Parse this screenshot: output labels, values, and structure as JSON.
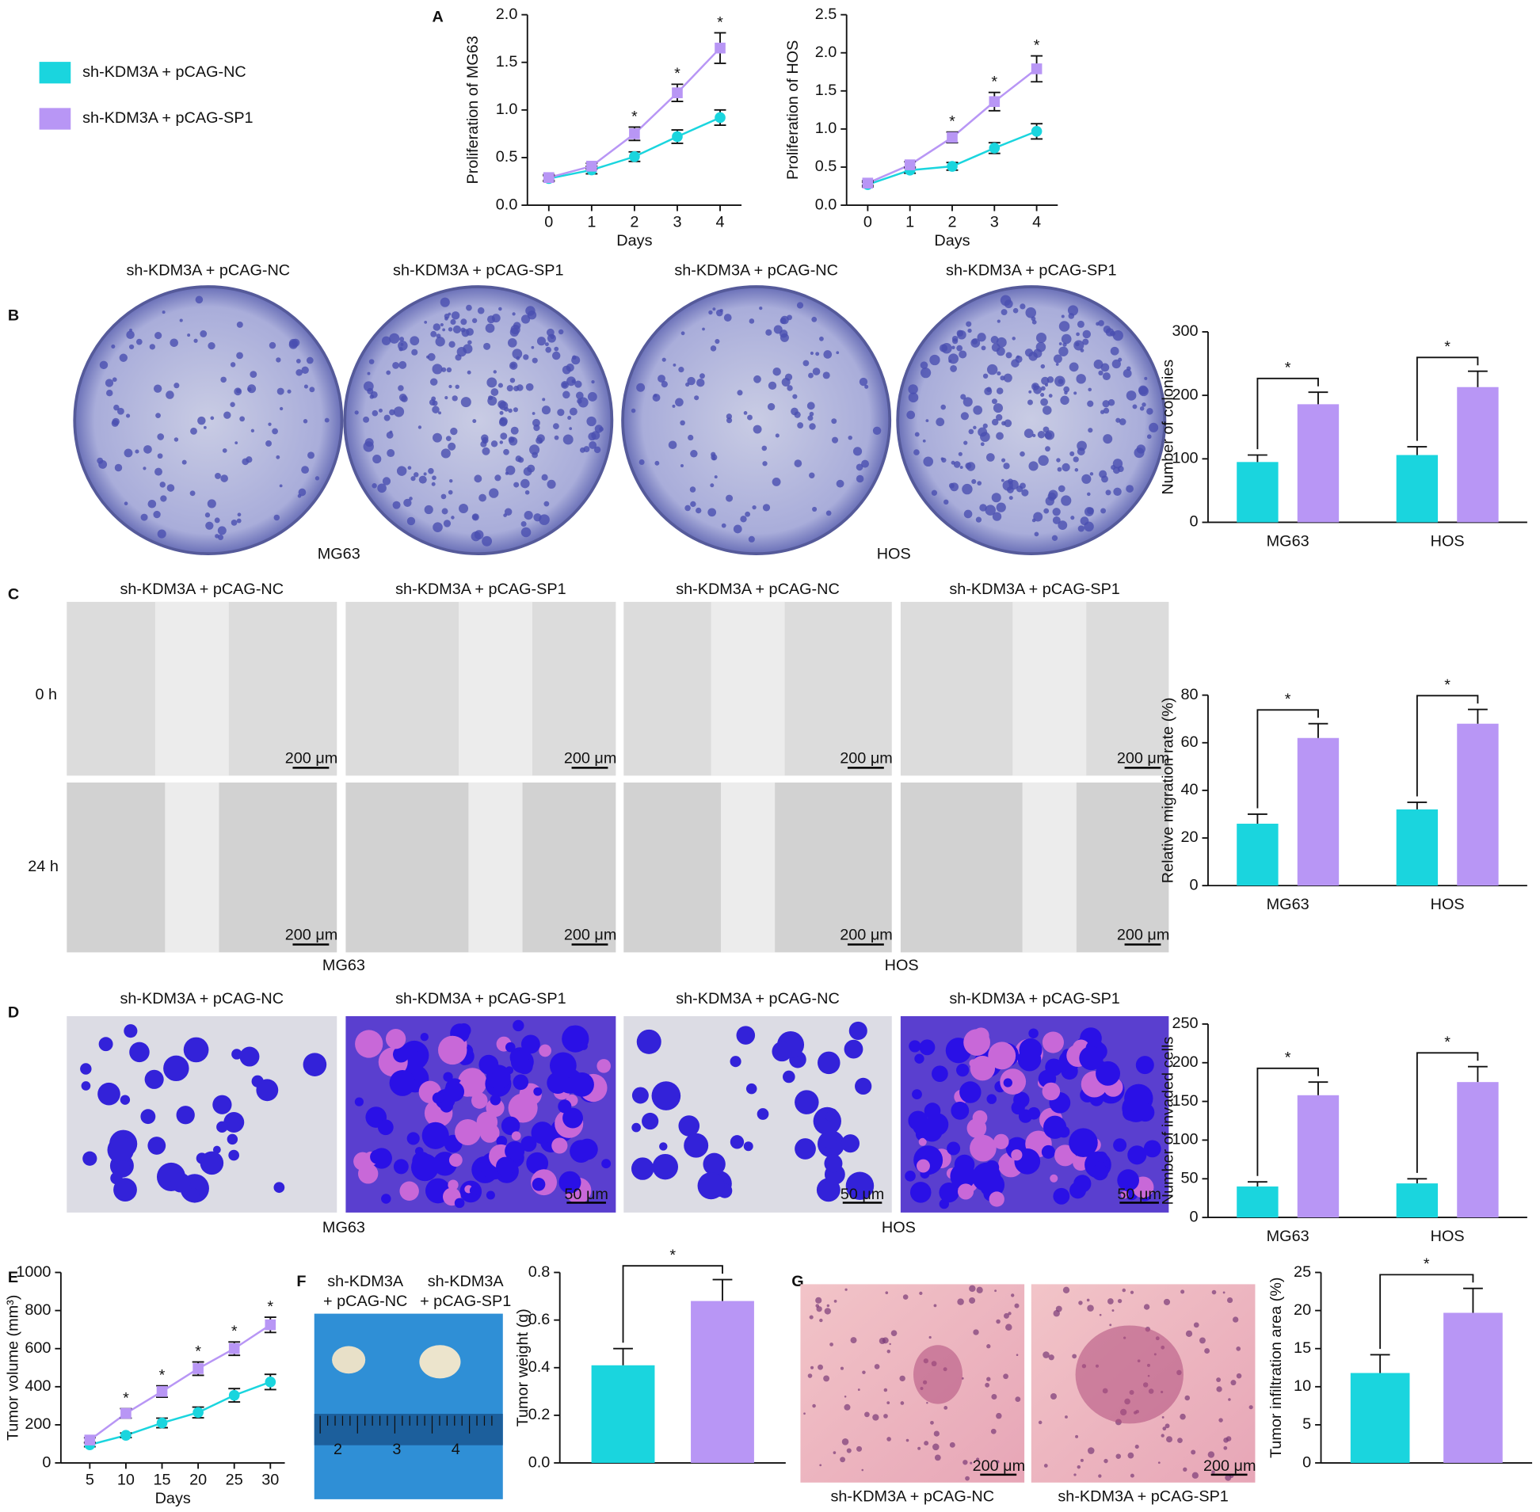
{
  "panel_labels": [
    "A",
    "B",
    "C",
    "D",
    "E",
    "F",
    "G"
  ],
  "photos": {
    "colony": {
      "titles": [
        "sh-KDM3A + pCAG-NC",
        "sh-KDM3A + pCAG-SP1",
        "sh-KDM3A + pCAG-NC",
        "sh-KDM3A + pCAG-SP1"
      ],
      "cell_lines": [
        "MG63",
        "HOS"
      ]
    },
    "wound": {
      "titles": [
        "sh-KDM3A + pCAG-NC",
        "sh-KDM3A + pCAG-SP1",
        "sh-KDM3A + pCAG-NC",
        "sh-KDM3A + pCAG-SP1"
      ],
      "times": [
        "0 h",
        "24 h"
      ],
      "scale_bar": "200 μm",
      "cell_lines": [
        "MG63",
        "HOS"
      ]
    },
    "invasion": {
      "titles": [
        "sh-KDM3A + pCAG-NC",
        "sh-KDM3A + pCAG-SP1",
        "sh-KDM3A + pCAG-NC",
        "sh-KDM3A + pCAG-SP1"
      ],
      "scale_bar": "50 μm",
      "cell_lines": [
        "MG63",
        "HOS"
      ]
    },
    "tumor": {
      "titles": [
        [
          "sh-KDM3A",
          "+ pCAG-NC"
        ],
        [
          "sh-KDM3A",
          "+ pCAG-SP1"
        ]
      ],
      "ruler": [
        "2",
        "3",
        "4"
      ]
    },
    "he": {
      "titles": [
        "sh-KDM3A + pCAG-NC",
        "sh-KDM3A + pCAG-SP1"
      ],
      "scale_bar": "200 μm"
    }
  },
  "chart_data": [
    {
      "type": "line",
      "ylabel": "Proliferation of MG63",
      "xlabel": "Days",
      "x": [
        0,
        1,
        2,
        3,
        4
      ],
      "xlim": [
        -0.5,
        4.5
      ],
      "xticks": [
        0,
        1,
        2,
        3,
        4
      ],
      "ylim": [
        0,
        2
      ],
      "yticks": [
        {
          "value": 0,
          "label": "0.0"
        },
        0.5,
        {
          "value": 1,
          "label": "1.0"
        },
        1.5,
        {
          "value": 2,
          "label": "2.0"
        }
      ],
      "series": [
        {
          "name": "sh-KDM3A + pCAG-NC",
          "color": "#1ad5de",
          "values": [
            0.28,
            0.37,
            0.51,
            0.72,
            0.92
          ],
          "errors": [
            0.03,
            0.04,
            0.05,
            0.07,
            0.08
          ]
        },
        {
          "name": "sh-KDM3A + pCAG-SP1",
          "color": "#b896f5",
          "values": [
            0.29,
            0.41,
            0.75,
            1.18,
            1.65
          ],
          "errors": [
            0.03,
            0.03,
            0.07,
            0.09,
            0.16
          ]
        }
      ],
      "significance_label": "*",
      "significant": [
        false,
        false,
        true,
        true,
        true
      ]
    },
    {
      "type": "line",
      "ylabel": "Proliferation of HOS",
      "xlabel": "Days",
      "x": [
        0,
        1,
        2,
        3,
        4
      ],
      "xlim": [
        -0.5,
        4.5
      ],
      "xticks": [
        0,
        1,
        2,
        3,
        4
      ],
      "ylim": [
        0,
        2.5
      ],
      "yticks": [
        {
          "value": 0,
          "label": "0.0"
        },
        0.5,
        {
          "value": 1,
          "label": "1.0"
        },
        1.5,
        {
          "value": 2,
          "label": "2.0"
        },
        2.5
      ],
      "series": [
        {
          "color": "#1ad5de",
          "values": [
            0.27,
            0.46,
            0.51,
            0.75,
            0.97
          ],
          "errors": [
            0.03,
            0.04,
            0.05,
            0.07,
            0.1
          ]
        },
        {
          "color": "#b896f5",
          "values": [
            0.29,
            0.53,
            0.89,
            1.36,
            1.79
          ],
          "errors": [
            0.03,
            0.04,
            0.07,
            0.12,
            0.17
          ]
        }
      ],
      "significance_label": "*",
      "significant": [
        false,
        false,
        true,
        true,
        true
      ]
    },
    {
      "type": "bar",
      "ylabel": "Number of colonies",
      "categories": [
        "MG63",
        "HOS"
      ],
      "ylim": [
        0,
        300
      ],
      "yticks": [
        0,
        100,
        200,
        300
      ],
      "series": [
        {
          "color": "#1ad5de",
          "values": [
            95,
            106
          ],
          "errors": [
            11,
            13
          ]
        },
        {
          "color": "#b896f5",
          "values": [
            186,
            213
          ],
          "errors": [
            19,
            25
          ]
        }
      ],
      "significance_label": "*"
    },
    {
      "type": "bar",
      "ylabel": "Relative migration rate (%)",
      "categories": [
        "MG63",
        "HOS"
      ],
      "ylim": [
        0,
        80
      ],
      "yticks": [
        0,
        20,
        40,
        60,
        80
      ],
      "series": [
        {
          "color": "#1ad5de",
          "values": [
            26,
            32
          ],
          "errors": [
            4,
            3
          ]
        },
        {
          "color": "#b896f5",
          "values": [
            62,
            68
          ],
          "errors": [
            6,
            6
          ]
        }
      ],
      "significance_label": "*"
    },
    {
      "type": "bar",
      "ylabel": "Number of invaded cells",
      "categories": [
        "MG63",
        "HOS"
      ],
      "ylim": [
        0,
        250
      ],
      "yticks": [
        0,
        50,
        100,
        150,
        200,
        250
      ],
      "series": [
        {
          "color": "#1ad5de",
          "values": [
            40,
            44
          ],
          "errors": [
            6,
            6
          ]
        },
        {
          "color": "#b896f5",
          "values": [
            158,
            175
          ],
          "errors": [
            17,
            20
          ]
        }
      ],
      "significance_label": "*"
    },
    {
      "type": "line",
      "ylabel": "Tumor volume (mm³)",
      "xlabel": "Days",
      "x": [
        5,
        10,
        15,
        20,
        25,
        30
      ],
      "xlim": [
        1,
        32
      ],
      "xticks": [
        5,
        10,
        15,
        20,
        25,
        30
      ],
      "ylim": [
        0,
        1000
      ],
      "yticks": [
        0,
        200,
        400,
        600,
        800,
        1000
      ],
      "series": [
        {
          "color": "#1ad5de",
          "values": [
            95,
            145,
            210,
            265,
            355,
            425
          ],
          "errors": [
            10,
            12,
            25,
            28,
            35,
            40
          ]
        },
        {
          "color": "#b896f5",
          "values": [
            120,
            260,
            375,
            495,
            600,
            725
          ],
          "errors": [
            12,
            25,
            30,
            35,
            35,
            40
          ]
        }
      ],
      "significance_label": "*",
      "significant": [
        false,
        true,
        true,
        true,
        true,
        true
      ]
    },
    {
      "type": "bar",
      "ylabel": "Tumor weight (g)",
      "categories": [
        null
      ],
      "ylim": [
        0,
        0.8
      ],
      "yticks": [
        {
          "value": 0,
          "label": "0.0"
        },
        0.2,
        0.4,
        0.6,
        0.8
      ],
      "series": [
        {
          "color": "#1ad5de",
          "values": [
            0.41
          ],
          "errors": [
            0.07
          ]
        },
        {
          "color": "#b896f5",
          "values": [
            0.68
          ],
          "errors": [
            0.09
          ]
        }
      ],
      "significance_label": "*"
    },
    {
      "type": "bar",
      "ylabel": "Tumor infiltration area (%)",
      "categories": [
        null
      ],
      "ylim": [
        0,
        25
      ],
      "yticks": [
        0,
        5,
        10,
        15,
        20,
        25
      ],
      "series": [
        {
          "color": "#1ad5de",
          "values": [
            11.8
          ],
          "errors": [
            2.4
          ]
        },
        {
          "color": "#b896f5",
          "values": [
            19.7
          ],
          "errors": [
            3.2
          ]
        }
      ],
      "significance_label": "*"
    }
  ]
}
